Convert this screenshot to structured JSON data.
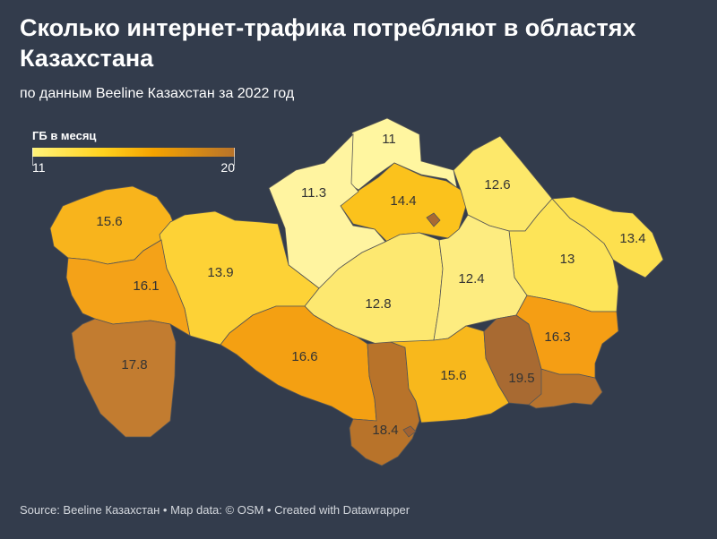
{
  "header": {
    "title": "Сколько интернет-трафика потребляют в областях Казахстана",
    "subtitle": "по данным Beeline Казахстан за 2022 год"
  },
  "legend": {
    "title": "ГБ в месяц",
    "min_label": "11",
    "max_label": "20",
    "colors": [
      "#fff27a",
      "#ffd21e",
      "#f5a300",
      "#b8732a"
    ]
  },
  "regions": [
    {
      "id": "north-kazakhstan",
      "value": 11,
      "label": "11",
      "color": "#fff6a0"
    },
    {
      "id": "akmola",
      "value": 14.4,
      "label": "14.4",
      "color": "#fbc21c"
    },
    {
      "id": "astana",
      "value": null,
      "label": "",
      "color": "#a96a32"
    },
    {
      "id": "kostanay",
      "value": 11.3,
      "label": "11.3",
      "color": "#fff4a0"
    },
    {
      "id": "pavlodar",
      "value": 12.6,
      "label": "12.6",
      "color": "#fde86a"
    },
    {
      "id": "east-kazakhstan",
      "value": 13.4,
      "label": "13.4",
      "color": "#fde04e"
    },
    {
      "id": "abai",
      "value": 13,
      "label": "13",
      "color": "#fde458"
    },
    {
      "id": "west-kazakhstan",
      "value": 15.6,
      "label": "15.6",
      "color": "#f8b41c"
    },
    {
      "id": "aktobe",
      "value": 13.9,
      "label": "13.9",
      "color": "#fdd236"
    },
    {
      "id": "atyrau",
      "value": 16.1,
      "label": "16.1",
      "color": "#f4a218"
    },
    {
      "id": "mangystau",
      "value": 17.8,
      "label": "17.8",
      "color": "#c27c30"
    },
    {
      "id": "ulytau",
      "value": 12.8,
      "label": "12.8",
      "color": "#fde870"
    },
    {
      "id": "karaganda",
      "value": 12.4,
      "label": "12.4",
      "color": "#fdec80"
    },
    {
      "id": "kyzylorda",
      "value": 16.6,
      "label": "16.6",
      "color": "#f4a012"
    },
    {
      "id": "turkistan",
      "value": 18.4,
      "label": "18.4",
      "color": "#b8732a"
    },
    {
      "id": "shymkent",
      "value": null,
      "label": "",
      "color": "#a06232"
    },
    {
      "id": "zhambyl",
      "value": 15.6,
      "label": "15.6",
      "color": "#f8b81c"
    },
    {
      "id": "almaty-region",
      "value": 19.5,
      "label": "19.5",
      "color": "#a86a32"
    },
    {
      "id": "almaty-south",
      "value": null,
      "label": "",
      "color": "#b8742e"
    },
    {
      "id": "zhetysu",
      "value": 16.3,
      "label": "16.3",
      "color": "#f59e14"
    }
  ],
  "footer": {
    "text": "Source: Beeline Казахстан • Map data: © OSM • Created with Datawrapper"
  }
}
